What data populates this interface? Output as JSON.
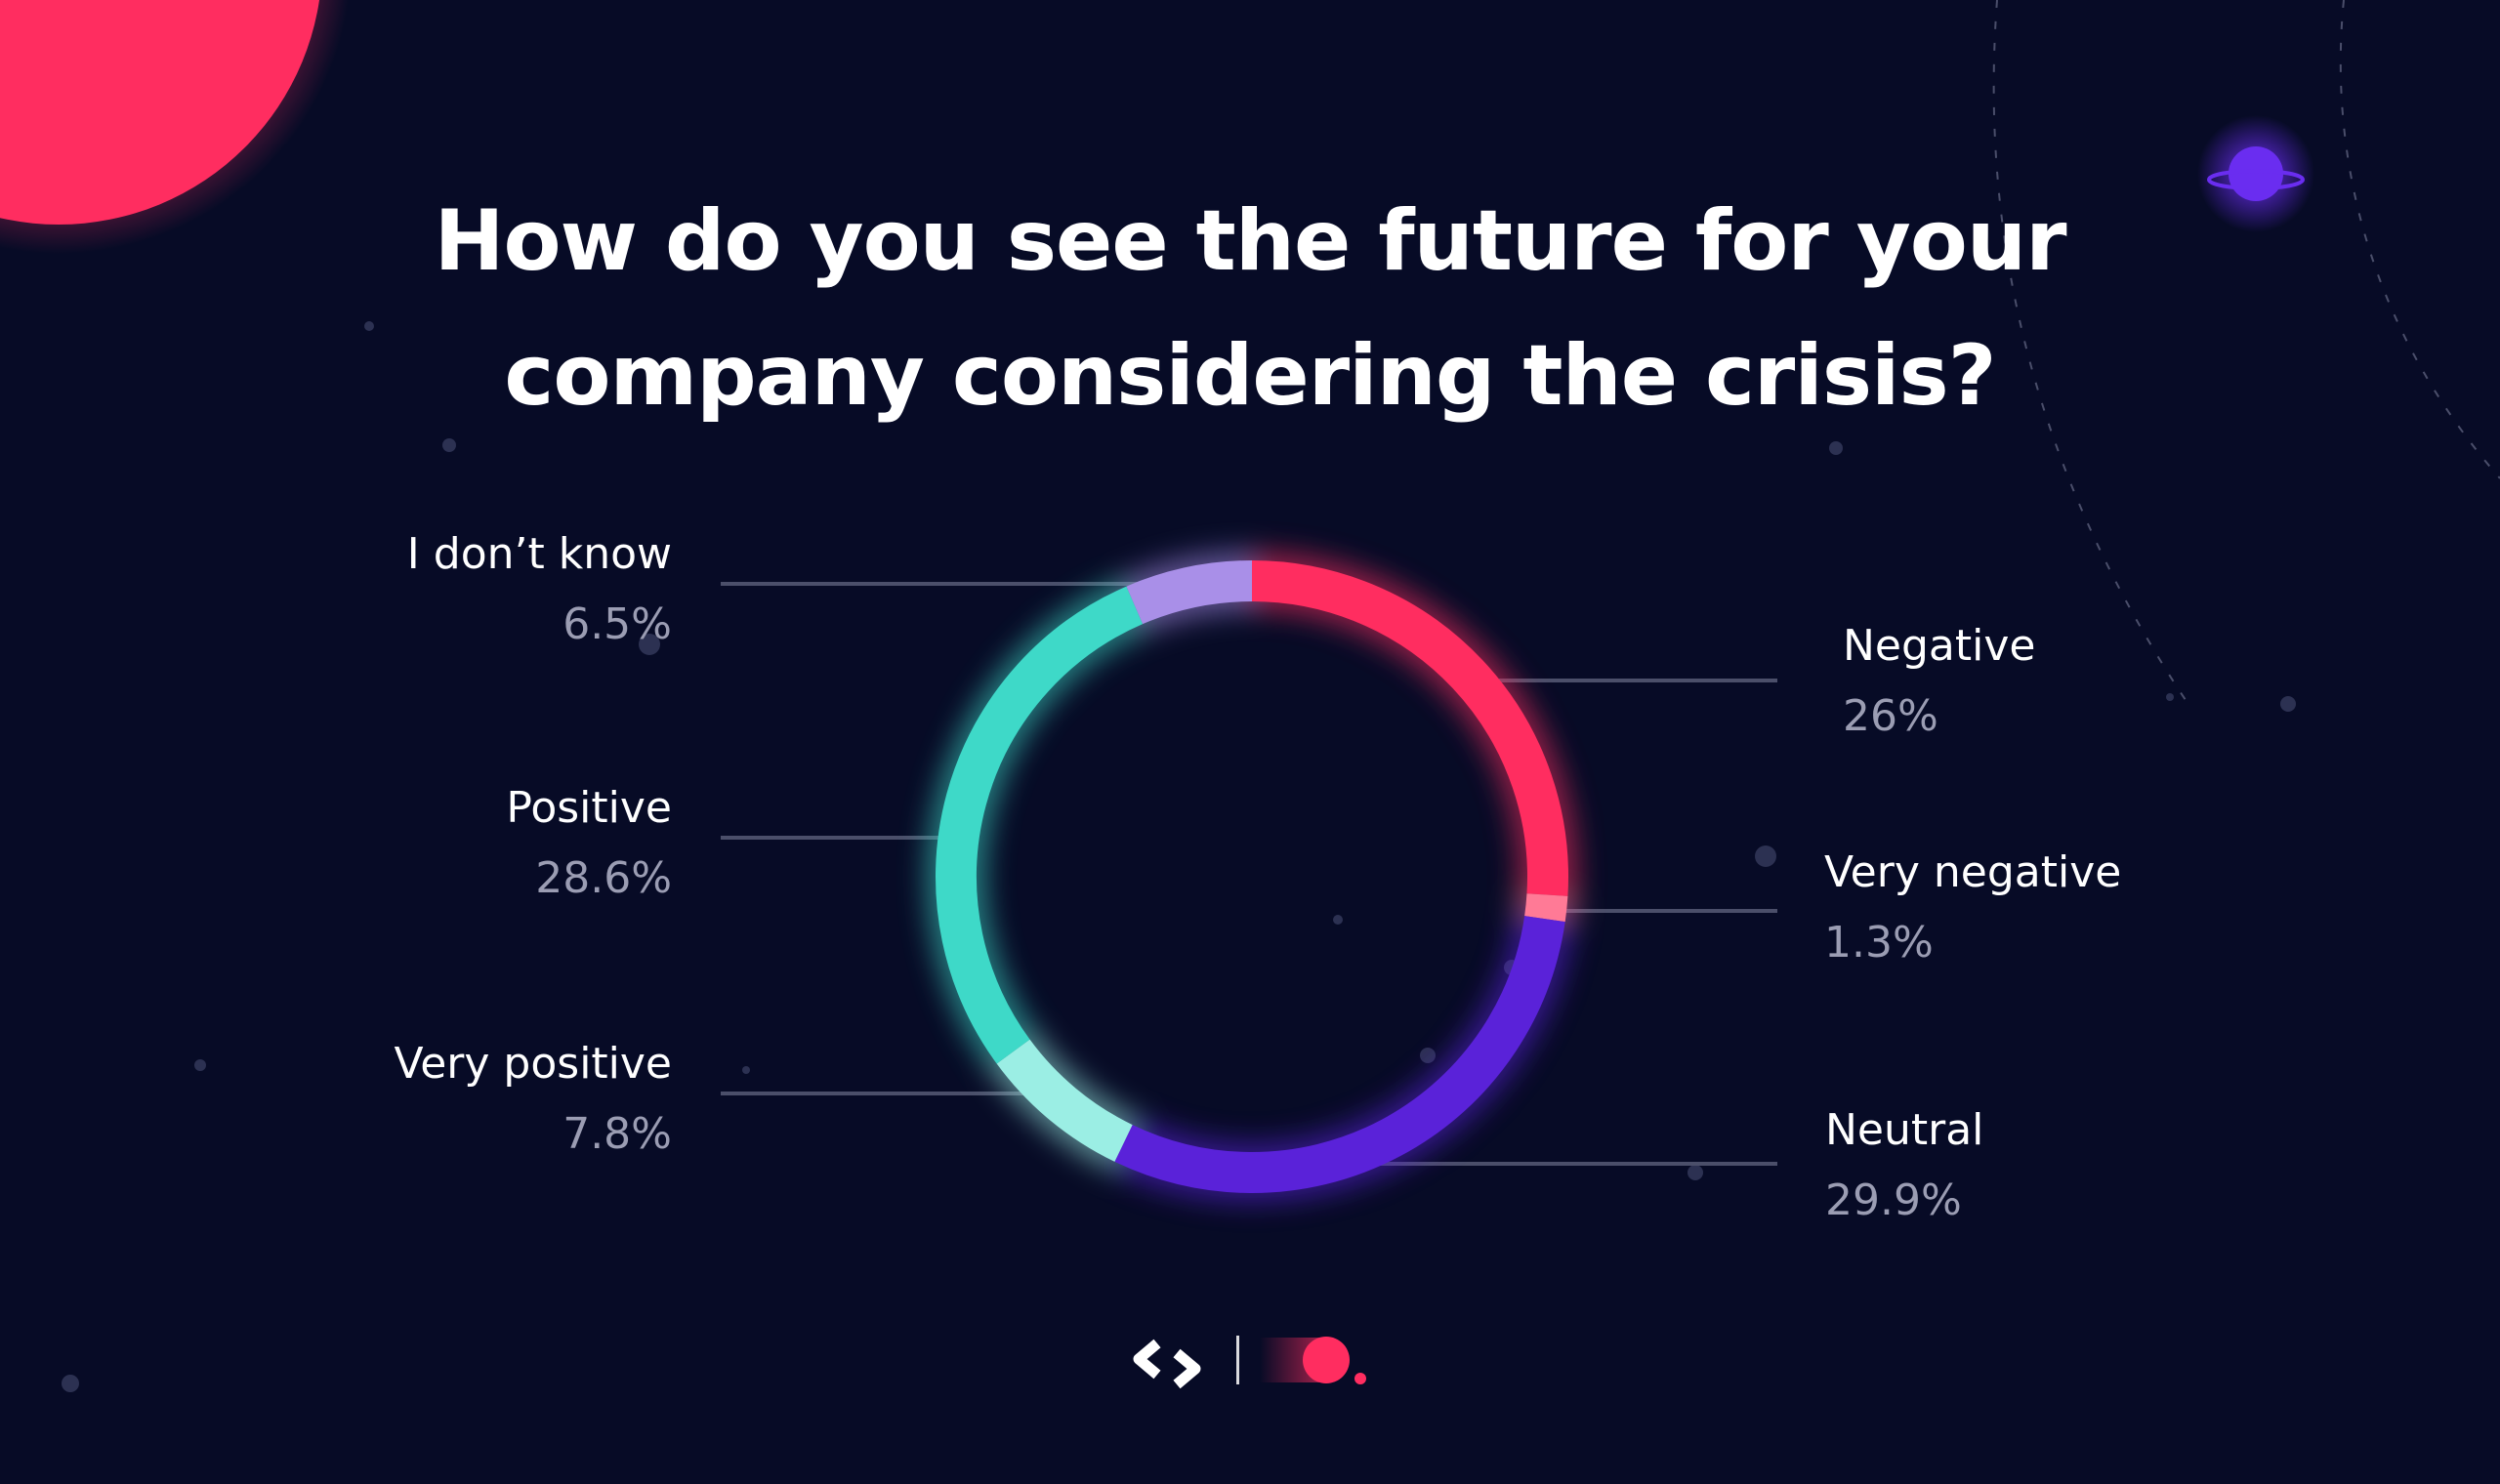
{
  "title_lines": [
    "How do you see the future for your",
    "company considering the crisis?"
  ],
  "colors": {
    "background": "#070b26",
    "negative": "#ff2d60",
    "very_negative": "#ff7a96",
    "neutral": "#5a22d9",
    "very_positive": "#9beee4",
    "positive": "#3ed9c8",
    "dont_know": "#a98fe8",
    "accent_planet": "#ff2d60",
    "small_planet": "#6a2df0"
  },
  "chart_data": {
    "type": "pie",
    "title": "How do you see the future for your company considering the crisis?",
    "unit": "%",
    "slices": [
      {
        "label": "Negative",
        "value": 26,
        "display": "26%",
        "color": "#ff2d60"
      },
      {
        "label": "Very negative",
        "value": 1.3,
        "display": "1.3%",
        "color": "#ff7a96"
      },
      {
        "label": "Neutral",
        "value": 29.9,
        "display": "29.9%",
        "color": "#5a22d9"
      },
      {
        "label": "Very positive",
        "value": 7.8,
        "display": "7.8%",
        "color": "#9beee4"
      },
      {
        "label": "Positive",
        "value": 28.6,
        "display": "28.6%",
        "color": "#3ed9c8"
      },
      {
        "label": "I don’t know",
        "value": 6.5,
        "display": "6.5%",
        "color": "#a98fe8"
      }
    ],
    "legend": "callout labels"
  },
  "icons": [
    "brand-chevron-icon",
    "brand-dot-icon",
    "planet-icon"
  ]
}
